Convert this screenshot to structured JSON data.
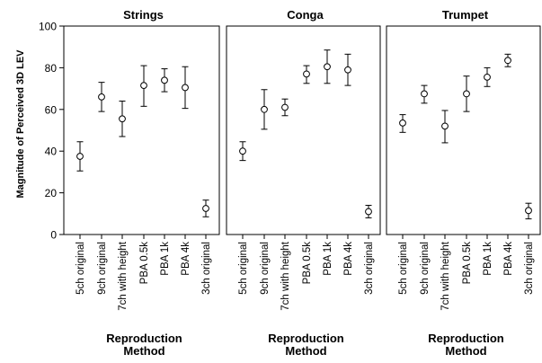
{
  "chart_data": {
    "type": "scatter",
    "ylabel": "Magnitude of Perceived 3D LEV",
    "ylim": [
      0,
      100
    ],
    "yticks": [
      "0",
      "20",
      "40",
      "60",
      "80",
      "100"
    ],
    "categories": [
      "5ch original",
      "9ch original",
      "7ch with height",
      "PBA 0.5k",
      "PBA 1k",
      "PBA 4k",
      "3ch original"
    ],
    "xlabel_line1": "Reproduction",
    "xlabel_line2": "Method",
    "grid": false,
    "panels": [
      {
        "title": "Strings",
        "series": [
          {
            "mean": 37.5,
            "lower": 30.5,
            "upper": 44.5
          },
          {
            "mean": 66,
            "lower": 59,
            "upper": 73
          },
          {
            "mean": 55.5,
            "lower": 47,
            "upper": 64
          },
          {
            "mean": 71.5,
            "lower": 61.5,
            "upper": 81
          },
          {
            "mean": 74,
            "lower": 68.5,
            "upper": 79.5
          },
          {
            "mean": 70.5,
            "lower": 60.5,
            "upper": 80.5
          },
          {
            "mean": 12.5,
            "lower": 8.5,
            "upper": 16.5
          }
        ]
      },
      {
        "title": "Conga",
        "series": [
          {
            "mean": 40,
            "lower": 35.5,
            "upper": 44.5
          },
          {
            "mean": 60,
            "lower": 50.5,
            "upper": 69.5
          },
          {
            "mean": 61,
            "lower": 57,
            "upper": 65
          },
          {
            "mean": 77,
            "lower": 72.5,
            "upper": 81
          },
          {
            "mean": 80.5,
            "lower": 72.5,
            "upper": 88.5
          },
          {
            "mean": 79,
            "lower": 71.5,
            "upper": 86.5
          },
          {
            "mean": 11,
            "lower": 8,
            "upper": 14
          }
        ]
      },
      {
        "title": "Trumpet",
        "series": [
          {
            "mean": 53.5,
            "lower": 49,
            "upper": 57.5
          },
          {
            "mean": 67.5,
            "lower": 63,
            "upper": 71.5
          },
          {
            "mean": 52,
            "lower": 44,
            "upper": 59.5
          },
          {
            "mean": 67.5,
            "lower": 59,
            "upper": 76
          },
          {
            "mean": 75.5,
            "lower": 71,
            "upper": 80
          },
          {
            "mean": 83.5,
            "lower": 80.5,
            "upper": 86.5
          },
          {
            "mean": 11.5,
            "lower": 7.5,
            "upper": 15
          }
        ]
      }
    ]
  }
}
